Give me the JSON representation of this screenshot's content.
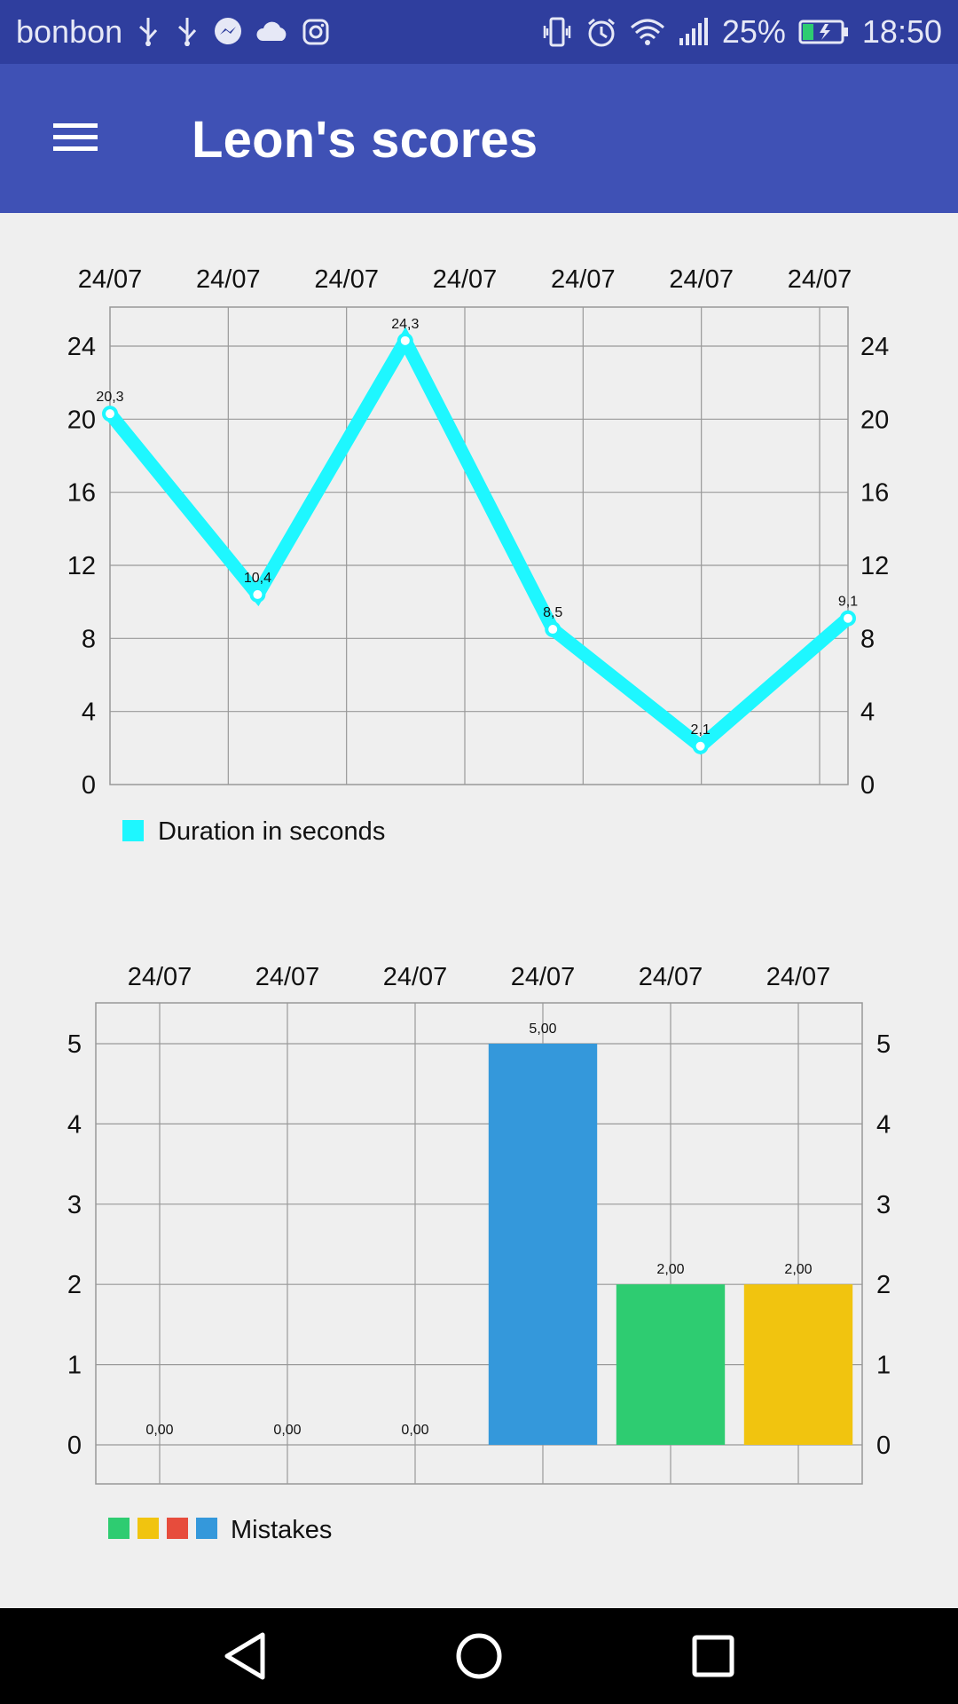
{
  "statusbar": {
    "carrier": "bonbon",
    "battery_text": "25%",
    "time": "18:50",
    "left_icons": [
      "usb-icon",
      "usb-icon",
      "messenger-icon",
      "cloud-icon",
      "instagram-icon"
    ],
    "right_icons": [
      "vibrate-icon",
      "alarm-icon",
      "wifi-icon",
      "signal-icon",
      "battery-icon"
    ]
  },
  "appbar": {
    "title": "Leon's scores",
    "menu_icon": "hamburger-menu-icon",
    "background": "#3f51b5"
  },
  "chart_data": [
    {
      "type": "line",
      "x_labels": [
        "24/07",
        "24/07",
        "24/07",
        "24/07",
        "24/07",
        "24/07",
        "24/07"
      ],
      "values": [
        20.3,
        10.4,
        24.3,
        8.5,
        2.1,
        9.1
      ],
      "value_labels": [
        "20,3",
        "10,4",
        "24,3",
        "8,5",
        "2,1",
        "9,1"
      ],
      "y_ticks": [
        "0",
        "4",
        "8",
        "12",
        "16",
        "20",
        "24"
      ],
      "ylim": [
        0,
        24
      ],
      "legend": "Duration in seconds",
      "color": "#1ef7ff",
      "grid": true,
      "legend_position": "bottom-left"
    },
    {
      "type": "bar",
      "categories": [
        "24/07",
        "24/07",
        "24/07",
        "24/07",
        "24/07",
        "24/07"
      ],
      "values": [
        0,
        0,
        0,
        5,
        2,
        2
      ],
      "value_labels": [
        "0,00",
        "0,00",
        "0,00",
        "5,00",
        "2,00",
        "2,00"
      ],
      "bar_colors": [
        "#3498db",
        "#3498db",
        "#3498db",
        "#3498db",
        "#2ecc71",
        "#f1c40f"
      ],
      "y_ticks": [
        "0",
        "1",
        "2",
        "3",
        "4",
        "5"
      ],
      "ylim": [
        0,
        5
      ],
      "legend": "Mistakes",
      "legend_colors": [
        "#2ecc71",
        "#f1c40f",
        "#e74c3c",
        "#3498db"
      ],
      "grid": true,
      "legend_position": "bottom-left"
    }
  ],
  "navbar": {
    "buttons": [
      "back-icon",
      "home-icon",
      "recents-icon"
    ]
  }
}
